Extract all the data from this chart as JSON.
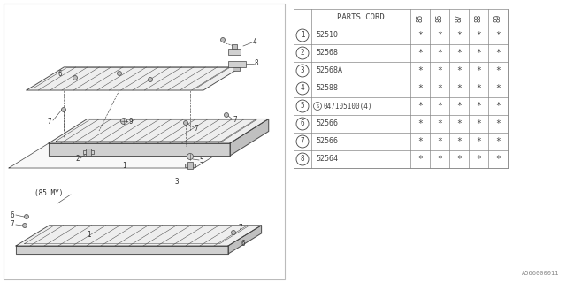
{
  "bg_color": "#ffffff",
  "table_header": "PARTS CORD",
  "years": [
    "85",
    "86",
    "87",
    "88",
    "89"
  ],
  "parts": [
    {
      "num": "1",
      "code": "52510",
      "special": false
    },
    {
      "num": "2",
      "code": "52568",
      "special": false
    },
    {
      "num": "3",
      "code": "52568A",
      "special": false
    },
    {
      "num": "4",
      "code": "52588",
      "special": false
    },
    {
      "num": "5",
      "code": "047105100(4)",
      "special": true
    },
    {
      "num": "6",
      "code": "52566",
      "special": false
    },
    {
      "num": "7",
      "code": "52566",
      "special": false
    },
    {
      "num": "8",
      "code": "52564",
      "special": false
    }
  ],
  "watermark": "A566000011",
  "diagram_color": "#444444",
  "label_color": "#333333",
  "table_line_color": "#888888",
  "fill_top": "#f0f0f0",
  "fill_front": "#d0d0d0",
  "fill_right": "#c0c0c0"
}
